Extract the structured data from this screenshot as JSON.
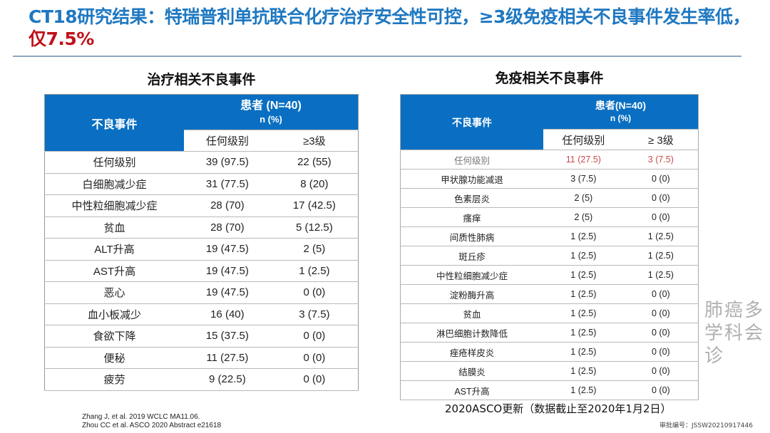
{
  "title": {
    "main": "CT18研究结果：特瑞普利单抗联合化疗治疗安全性可控，≥3级免疫相关不良事件发生率低，",
    "highlight": "仅7.5%"
  },
  "left": {
    "subtitle": "治疗相关不良事件",
    "h_event": "不良事件",
    "h_patients": "患者 (N=40)",
    "h_unit": "n (%)",
    "h_any": "任何级别",
    "h_g3": "≥3级",
    "rows": [
      [
        "任何级别",
        "39 (97.5)",
        "22 (55)"
      ],
      [
        "白细胞减少症",
        "31 (77.5)",
        "8 (20)"
      ],
      [
        "中性粒细胞减少症",
        "28 (70)",
        "17 (42.5)"
      ],
      [
        "贫血",
        "28 (70)",
        "5 (12.5)"
      ],
      [
        "ALT升高",
        "19 (47.5)",
        "2 (5)"
      ],
      [
        "AST升高",
        "19 (47.5)",
        "1 (2.5)"
      ],
      [
        "恶心",
        "19 (47.5)",
        "0 (0)"
      ],
      [
        "血小板减少",
        "16 (40)",
        "3 (7.5)"
      ],
      [
        "食欲下降",
        "15 (37.5)",
        "0 (0)"
      ],
      [
        "便秘",
        "11 (27.5)",
        "0 (0)"
      ],
      [
        "疲劳",
        "9 (22.5)",
        "0 (0)"
      ]
    ]
  },
  "right": {
    "subtitle": "免疫相关不良事件",
    "h_event": "不良事件",
    "h_patients": "患者(N=40)",
    "h_unit": "n (%)",
    "h_any": "任何级别",
    "h_g3": "≥ 3级",
    "rows": [
      [
        "任何级别",
        "11 (27.5)",
        "3 (7.5)"
      ],
      [
        "甲状腺功能减退",
        "3 (7.5)",
        "0 (0)"
      ],
      [
        "色素层炎",
        "2 (5)",
        "0 (0)"
      ],
      [
        "瘙痒",
        "2 (5)",
        "0 (0)"
      ],
      [
        "间质性肺病",
        "1 (2.5)",
        "1 (2.5)"
      ],
      [
        "斑丘疹",
        "1 (2.5)",
        "1 (2.5)"
      ],
      [
        "中性粒细胞减少症",
        "1 (2.5)",
        "1 (2.5)"
      ],
      [
        "淀粉酶升高",
        "1 (2.5)",
        "0 (0)"
      ],
      [
        "贫血",
        "1 (2.5)",
        "0 (0)"
      ],
      [
        "淋巴细胞计数降低",
        "1 (2.5)",
        "0 (0)"
      ],
      [
        "痤疮样皮炎",
        "1 (2.5)",
        "0 (0)"
      ],
      [
        "结膜炎",
        "1 (2.5)",
        "0 (0)"
      ],
      [
        "AST升高",
        "1 (2.5)",
        "0 (0)"
      ]
    ]
  },
  "refs": [
    "Zhang J, et al. 2019 WCLC MA11.06.",
    "Zhou CC et al. ASCO  2020 Abstract  e21618"
  ],
  "note": "2020ASCO更新（数据截止至2020年1月2日）",
  "approval": "审批编号：JSSW20210917446",
  "watermark": "肺癌多学科会诊"
}
